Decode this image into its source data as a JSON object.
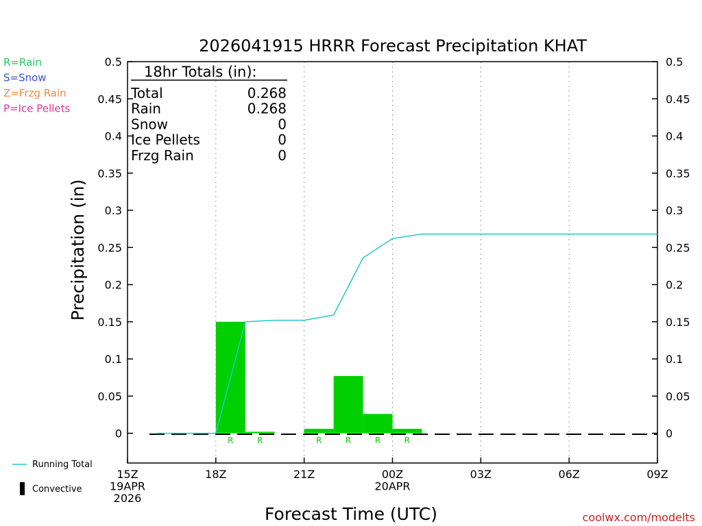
{
  "legend_types": [
    {
      "label": "R=Rain",
      "color": "#22c55e"
    },
    {
      "label": "S=Snow",
      "color": "#3b4fd8"
    },
    {
      "label": "Z=Frzg Rain",
      "color": "#f08a3c"
    },
    {
      "label": "P=Ice Pellets",
      "color": "#e0349a"
    }
  ],
  "legend_bottom": {
    "running_total": "Running Total",
    "convective": "Convective"
  },
  "totals_box": {
    "header": "18hr Totals (in):",
    "rows": [
      {
        "label": "Total",
        "value": "0.268"
      },
      {
        "label": "Rain",
        "value": "0.268"
      },
      {
        "label": "Snow",
        "value": "0"
      },
      {
        "label": "Ice Pellets",
        "value": "0"
      },
      {
        "label": "Frzg Rain",
        "value": "0"
      }
    ]
  },
  "credit": "coolwx.com/modelts",
  "colors": {
    "bar": "#00d000",
    "running_total": "#20c8c8",
    "grid": "#9a9a9a"
  },
  "chart_data": {
    "type": "bar",
    "title": "2026041915 HRRR Forecast Precipitation KHAT",
    "xlabel": "Forecast Time (UTC)",
    "ylabel": "Precipitation (in)",
    "xlim": [
      0,
      18
    ],
    "ylim": [
      -0.04,
      0.5
    ],
    "y_ticks": [
      0,
      0.05,
      0.1,
      0.15,
      0.2,
      0.25,
      0.3,
      0.35,
      0.4,
      0.45,
      0.5
    ],
    "y_tick_labels": [
      "0",
      "0.05",
      "0.1",
      "0.15",
      "0.2",
      "0.25",
      "0.3",
      "0.35",
      "0.4",
      "0.45",
      "0.5"
    ],
    "x_ticks": [
      {
        "x": 0,
        "lines": [
          "15Z",
          "19APR",
          "2026"
        ]
      },
      {
        "x": 3,
        "lines": [
          "18Z"
        ]
      },
      {
        "x": 6,
        "lines": [
          "21Z"
        ]
      },
      {
        "x": 9,
        "lines": [
          "00Z",
          "20APR"
        ]
      },
      {
        "x": 12,
        "lines": [
          "03Z"
        ]
      },
      {
        "x": 15,
        "lines": [
          "06Z"
        ]
      },
      {
        "x": 18,
        "lines": [
          "09Z"
        ]
      }
    ],
    "grid": "vertical dotted",
    "hourly_precip": [
      {
        "hour": 1,
        "value": 0,
        "type": ""
      },
      {
        "hour": 2,
        "value": 0,
        "type": ""
      },
      {
        "hour": 3,
        "value": 0,
        "type": ""
      },
      {
        "hour": 4,
        "value": 0.15,
        "type": "R"
      },
      {
        "hour": 5,
        "value": 0.002,
        "type": "R"
      },
      {
        "hour": 6,
        "value": 0,
        "type": ""
      },
      {
        "hour": 7,
        "value": 0.006,
        "type": "R"
      },
      {
        "hour": 8,
        "value": 0.077,
        "type": "R"
      },
      {
        "hour": 9,
        "value": 0.026,
        "type": "R"
      },
      {
        "hour": 10,
        "value": 0.006,
        "type": "R"
      },
      {
        "hour": 11,
        "value": 0,
        "type": ""
      },
      {
        "hour": 12,
        "value": 0,
        "type": ""
      },
      {
        "hour": 13,
        "value": 0,
        "type": ""
      },
      {
        "hour": 14,
        "value": 0,
        "type": ""
      },
      {
        "hour": 15,
        "value": 0,
        "type": ""
      },
      {
        "hour": 16,
        "value": 0,
        "type": ""
      },
      {
        "hour": 17,
        "value": 0,
        "type": ""
      },
      {
        "hour": 18,
        "value": 0,
        "type": ""
      }
    ],
    "running_total": {
      "name": "Running Total",
      "x": [
        1,
        2,
        3,
        4,
        5,
        6,
        7,
        8,
        9,
        10,
        11,
        12,
        13,
        14,
        15,
        16,
        17,
        18
      ],
      "y": [
        0,
        0,
        0,
        0.15,
        0.152,
        0.152,
        0.159,
        0.236,
        0.262,
        0.268,
        0.268,
        0.268,
        0.268,
        0.268,
        0.268,
        0.268,
        0.268,
        0.268
      ]
    }
  }
}
